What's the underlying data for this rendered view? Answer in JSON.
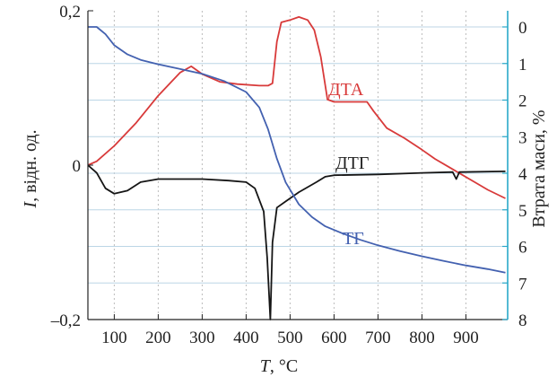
{
  "chart_data": {
    "type": "line",
    "x_axis": {
      "label_var": "T",
      "label_unit": ", °C",
      "range": [
        40,
        995
      ],
      "ticks": [
        100,
        200,
        300,
        400,
        500,
        600,
        700,
        800,
        900
      ],
      "tick_labels": [
        "100",
        "200",
        "300",
        "400",
        "500",
        "600",
        "700",
        "800",
        "900"
      ],
      "grid": true
    },
    "left_axis": {
      "label_var": "I",
      "label_unit": ", відн. од.",
      "range": [
        -0.2,
        0.2
      ],
      "labeled_ticks": [
        0.2,
        0,
        -0.2
      ],
      "tick_labels": [
        "0,2",
        "0",
        "–0,2"
      ]
    },
    "right_axis": {
      "label": "Втрата маси, %",
      "range": [
        0,
        8
      ],
      "ticks": [
        0,
        1,
        2,
        3,
        4,
        5,
        6,
        7,
        8
      ],
      "tick_labels": [
        "0",
        "1",
        "2",
        "3",
        "4",
        "5",
        "6",
        "7",
        "8"
      ],
      "color": "#29a8c9",
      "grid": true
    },
    "series": [
      {
        "name": "ДТА",
        "axis": "left",
        "color": "#d83a3a",
        "points": [
          [
            40,
            0.0
          ],
          [
            60,
            0.005
          ],
          [
            100,
            0.025
          ],
          [
            150,
            0.055
          ],
          [
            200,
            0.09
          ],
          [
            250,
            0.12
          ],
          [
            275,
            0.128
          ],
          [
            300,
            0.118
          ],
          [
            340,
            0.108
          ],
          [
            380,
            0.105
          ],
          [
            430,
            0.103
          ],
          [
            450,
            0.103
          ],
          [
            460,
            0.106
          ],
          [
            470,
            0.16
          ],
          [
            480,
            0.185
          ],
          [
            500,
            0.188
          ],
          [
            520,
            0.192
          ],
          [
            540,
            0.188
          ],
          [
            555,
            0.175
          ],
          [
            570,
            0.14
          ],
          [
            585,
            0.085
          ],
          [
            600,
            0.082
          ],
          [
            650,
            0.082
          ],
          [
            675,
            0.082
          ],
          [
            690,
            0.07
          ],
          [
            720,
            0.048
          ],
          [
            760,
            0.035
          ],
          [
            800,
            0.02
          ],
          [
            830,
            0.008
          ],
          [
            860,
            -0.002
          ],
          [
            890,
            -0.012
          ],
          [
            920,
            -0.022
          ],
          [
            950,
            -0.032
          ],
          [
            990,
            -0.043
          ]
        ]
      },
      {
        "name": "ДТГ",
        "axis": "left",
        "color": "#151515",
        "points": [
          [
            40,
            0.0
          ],
          [
            60,
            -0.01
          ],
          [
            80,
            -0.03
          ],
          [
            100,
            -0.037
          ],
          [
            130,
            -0.033
          ],
          [
            160,
            -0.022
          ],
          [
            200,
            -0.018
          ],
          [
            300,
            -0.018
          ],
          [
            360,
            -0.02
          ],
          [
            400,
            -0.022
          ],
          [
            420,
            -0.03
          ],
          [
            440,
            -0.06
          ],
          [
            448,
            -0.12
          ],
          [
            455,
            -0.2
          ],
          [
            460,
            -0.1
          ],
          [
            470,
            -0.055
          ],
          [
            490,
            -0.047
          ],
          [
            520,
            -0.035
          ],
          [
            560,
            -0.022
          ],
          [
            580,
            -0.015
          ],
          [
            600,
            -0.013
          ],
          [
            700,
            -0.012
          ],
          [
            800,
            -0.01
          ],
          [
            870,
            -0.009
          ],
          [
            878,
            -0.018
          ],
          [
            885,
            -0.009
          ],
          [
            990,
            -0.008
          ]
        ]
      },
      {
        "name": "ТГ",
        "axis": "right",
        "color": "#4361b0",
        "points": [
          [
            40,
            0.0
          ],
          [
            60,
            0.0
          ],
          [
            80,
            0.2
          ],
          [
            100,
            0.5
          ],
          [
            130,
            0.75
          ],
          [
            160,
            0.9
          ],
          [
            200,
            1.02
          ],
          [
            250,
            1.15
          ],
          [
            300,
            1.28
          ],
          [
            350,
            1.48
          ],
          [
            400,
            1.78
          ],
          [
            430,
            2.2
          ],
          [
            450,
            2.8
          ],
          [
            470,
            3.6
          ],
          [
            490,
            4.25
          ],
          [
            520,
            4.85
          ],
          [
            550,
            5.2
          ],
          [
            580,
            5.45
          ],
          [
            620,
            5.65
          ],
          [
            660,
            5.82
          ],
          [
            700,
            5.97
          ],
          [
            750,
            6.13
          ],
          [
            800,
            6.27
          ],
          [
            850,
            6.4
          ],
          [
            900,
            6.52
          ],
          [
            950,
            6.62
          ],
          [
            990,
            6.72
          ]
        ]
      }
    ]
  }
}
